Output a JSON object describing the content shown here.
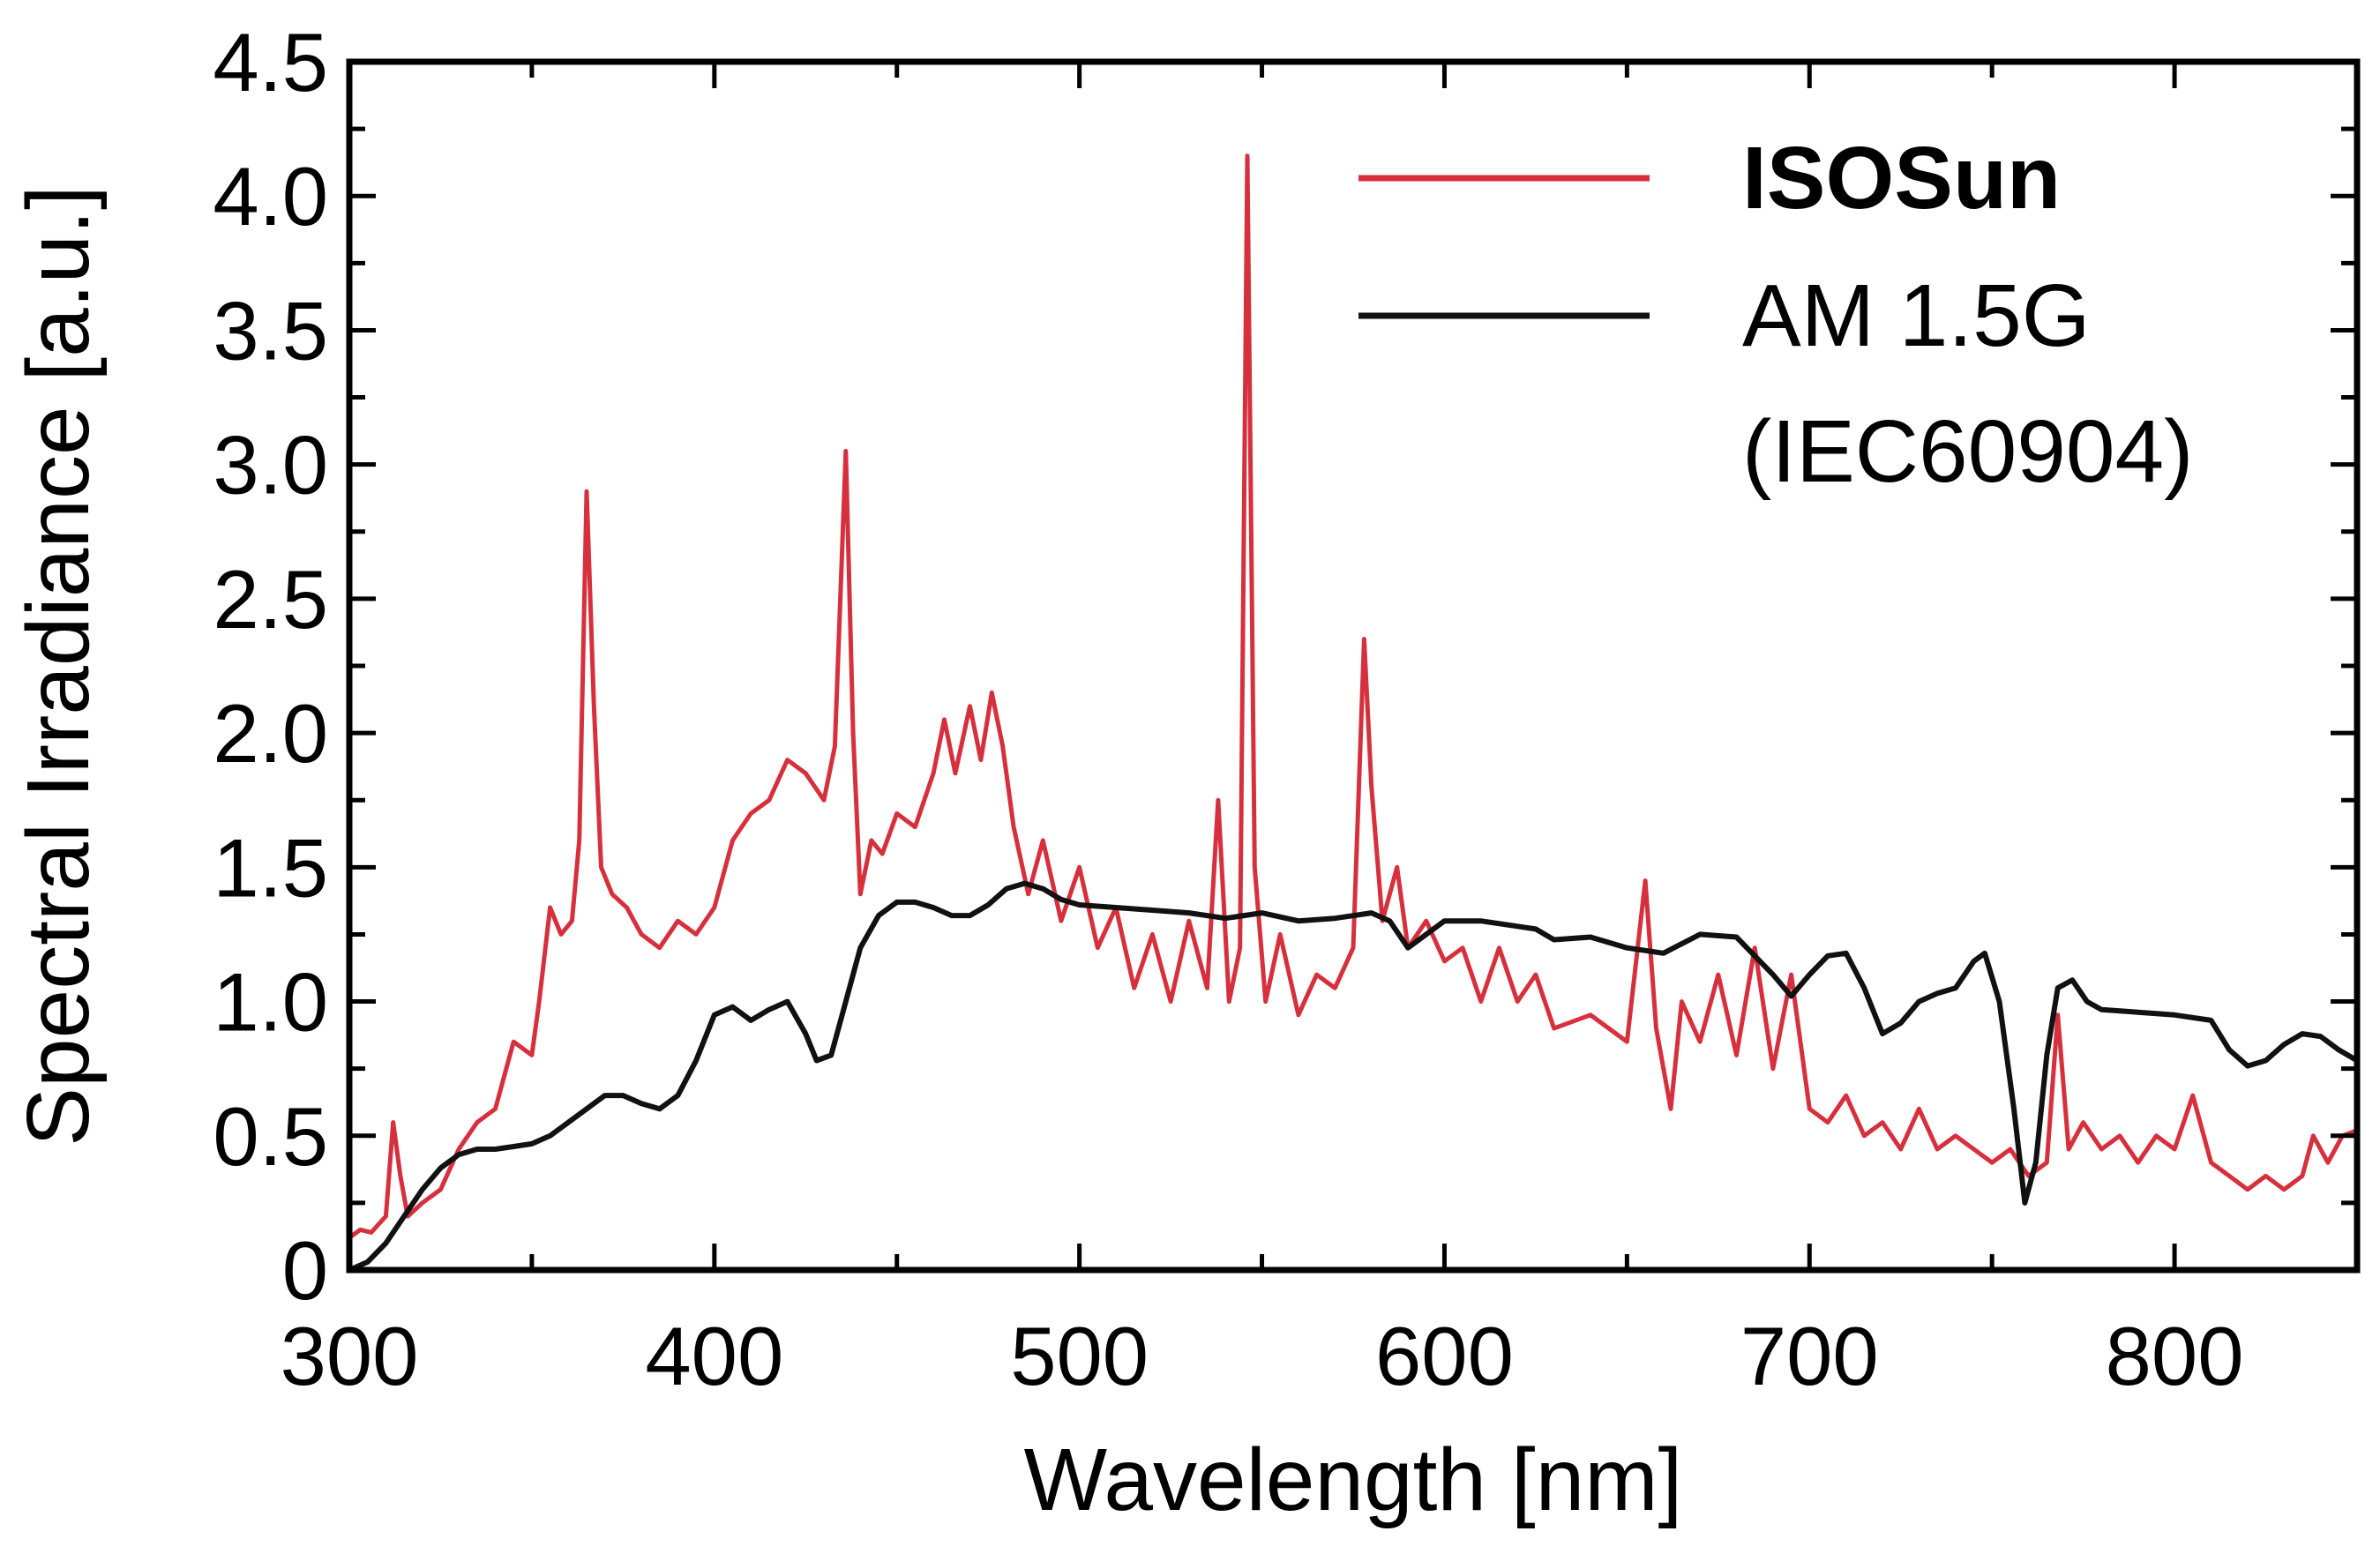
{
  "chart_data": {
    "type": "line",
    "title": "",
    "xlabel": "Wavelength [nm]",
    "ylabel": "Spectral Irradiance [a.u.]",
    "xlim": [
      300,
      850
    ],
    "ylim": [
      0,
      4.5
    ],
    "xticks": [
      300,
      400,
      500,
      600,
      700,
      800
    ],
    "xtick_labels": [
      "300",
      "400",
      "500",
      "600",
      "700",
      "800"
    ],
    "yticks": [
      0,
      0.5,
      1.0,
      1.5,
      2.0,
      2.5,
      3.0,
      3.5,
      4.0,
      4.5
    ],
    "ytick_labels": [
      "0",
      "0.5",
      "1.0",
      "1.5",
      "2.0",
      "2.5",
      "3.0",
      "3.5",
      "4.0",
      "4.5"
    ],
    "grid": false,
    "legend_position": "top-right",
    "legend": [
      {
        "label": "ISOSun",
        "bold": true,
        "series": 0
      },
      {
        "label": "AM 1.5G",
        "bold": false,
        "series": 1
      },
      {
        "label": "(IEC60904)",
        "bold": false,
        "series": null
      }
    ],
    "series": [
      {
        "name": "ISOSun",
        "color": "#d7303d",
        "points": [
          [
            300,
            0.12
          ],
          [
            303,
            0.15
          ],
          [
            306,
            0.14
          ],
          [
            310,
            0.2
          ],
          [
            312,
            0.55
          ],
          [
            314,
            0.35
          ],
          [
            316,
            0.2
          ],
          [
            320,
            0.25
          ],
          [
            325,
            0.3
          ],
          [
            330,
            0.45
          ],
          [
            335,
            0.55
          ],
          [
            340,
            0.6
          ],
          [
            345,
            0.85
          ],
          [
            350,
            0.8
          ],
          [
            352,
            1.0
          ],
          [
            355,
            1.35
          ],
          [
            358,
            1.25
          ],
          [
            361,
            1.3
          ],
          [
            363,
            1.6
          ],
          [
            365,
            2.9
          ],
          [
            367,
            2.1
          ],
          [
            369,
            1.5
          ],
          [
            372,
            1.4
          ],
          [
            376,
            1.35
          ],
          [
            380,
            1.25
          ],
          [
            385,
            1.2
          ],
          [
            390,
            1.3
          ],
          [
            395,
            1.25
          ],
          [
            400,
            1.35
          ],
          [
            405,
            1.6
          ],
          [
            410,
            1.7
          ],
          [
            415,
            1.75
          ],
          [
            420,
            1.9
          ],
          [
            425,
            1.85
          ],
          [
            430,
            1.75
          ],
          [
            433,
            1.95
          ],
          [
            436,
            3.05
          ],
          [
            438,
            2.0
          ],
          [
            440,
            1.4
          ],
          [
            443,
            1.6
          ],
          [
            446,
            1.55
          ],
          [
            450,
            1.7
          ],
          [
            455,
            1.65
          ],
          [
            460,
            1.85
          ],
          [
            463,
            2.05
          ],
          [
            466,
            1.85
          ],
          [
            470,
            2.1
          ],
          [
            473,
            1.9
          ],
          [
            476,
            2.15
          ],
          [
            479,
            1.95
          ],
          [
            482,
            1.65
          ],
          [
            486,
            1.4
          ],
          [
            490,
            1.6
          ],
          [
            495,
            1.3
          ],
          [
            500,
            1.5
          ],
          [
            505,
            1.2
          ],
          [
            510,
            1.35
          ],
          [
            515,
            1.05
          ],
          [
            520,
            1.25
          ],
          [
            525,
            1.0
          ],
          [
            530,
            1.3
          ],
          [
            535,
            1.05
          ],
          [
            538,
            1.75
          ],
          [
            541,
            1.0
          ],
          [
            544,
            1.2
          ],
          [
            546,
            4.15
          ],
          [
            548,
            1.5
          ],
          [
            551,
            1.0
          ],
          [
            555,
            1.25
          ],
          [
            560,
            0.95
          ],
          [
            565,
            1.1
          ],
          [
            570,
            1.05
          ],
          [
            575,
            1.2
          ],
          [
            578,
            2.35
          ],
          [
            580,
            1.8
          ],
          [
            583,
            1.3
          ],
          [
            587,
            1.5
          ],
          [
            590,
            1.2
          ],
          [
            595,
            1.3
          ],
          [
            600,
            1.15
          ],
          [
            605,
            1.2
          ],
          [
            610,
            1.0
          ],
          [
            615,
            1.2
          ],
          [
            620,
            1.0
          ],
          [
            625,
            1.1
          ],
          [
            630,
            0.9
          ],
          [
            640,
            0.95
          ],
          [
            650,
            0.85
          ],
          [
            655,
            1.45
          ],
          [
            658,
            0.9
          ],
          [
            662,
            0.6
          ],
          [
            665,
            1.0
          ],
          [
            670,
            0.85
          ],
          [
            675,
            1.1
          ],
          [
            680,
            0.8
          ],
          [
            685,
            1.2
          ],
          [
            690,
            0.75
          ],
          [
            695,
            1.1
          ],
          [
            700,
            0.6
          ],
          [
            705,
            0.55
          ],
          [
            710,
            0.65
          ],
          [
            715,
            0.5
          ],
          [
            720,
            0.55
          ],
          [
            725,
            0.45
          ],
          [
            730,
            0.6
          ],
          [
            735,
            0.45
          ],
          [
            740,
            0.5
          ],
          [
            745,
            0.45
          ],
          [
            750,
            0.4
          ],
          [
            755,
            0.45
          ],
          [
            760,
            0.35
          ],
          [
            765,
            0.4
          ],
          [
            768,
            0.95
          ],
          [
            771,
            0.45
          ],
          [
            775,
            0.55
          ],
          [
            780,
            0.45
          ],
          [
            785,
            0.5
          ],
          [
            790,
            0.4
          ],
          [
            795,
            0.5
          ],
          [
            800,
            0.45
          ],
          [
            805,
            0.65
          ],
          [
            810,
            0.4
          ],
          [
            815,
            0.35
          ],
          [
            820,
            0.3
          ],
          [
            825,
            0.35
          ],
          [
            830,
            0.3
          ],
          [
            835,
            0.35
          ],
          [
            838,
            0.5
          ],
          [
            842,
            0.4
          ],
          [
            846,
            0.5
          ],
          [
            850,
            0.52
          ]
        ]
      },
      {
        "name": "AM 1.5G",
        "color": "#111111",
        "points": [
          [
            300,
            0.0
          ],
          [
            305,
            0.03
          ],
          [
            310,
            0.1
          ],
          [
            315,
            0.2
          ],
          [
            320,
            0.3
          ],
          [
            325,
            0.38
          ],
          [
            330,
            0.43
          ],
          [
            335,
            0.45
          ],
          [
            340,
            0.45
          ],
          [
            345,
            0.46
          ],
          [
            350,
            0.47
          ],
          [
            355,
            0.5
          ],
          [
            360,
            0.55
          ],
          [
            365,
            0.6
          ],
          [
            370,
            0.65
          ],
          [
            375,
            0.65
          ],
          [
            380,
            0.62
          ],
          [
            385,
            0.6
          ],
          [
            390,
            0.65
          ],
          [
            395,
            0.78
          ],
          [
            400,
            0.95
          ],
          [
            405,
            0.98
          ],
          [
            410,
            0.93
          ],
          [
            415,
            0.97
          ],
          [
            420,
            1.0
          ],
          [
            425,
            0.88
          ],
          [
            428,
            0.78
          ],
          [
            432,
            0.8
          ],
          [
            436,
            1.0
          ],
          [
            440,
            1.2
          ],
          [
            445,
            1.32
          ],
          [
            450,
            1.37
          ],
          [
            455,
            1.37
          ],
          [
            460,
            1.35
          ],
          [
            465,
            1.32
          ],
          [
            470,
            1.32
          ],
          [
            475,
            1.36
          ],
          [
            480,
            1.42
          ],
          [
            485,
            1.44
          ],
          [
            490,
            1.42
          ],
          [
            495,
            1.38
          ],
          [
            500,
            1.36
          ],
          [
            510,
            1.35
          ],
          [
            520,
            1.34
          ],
          [
            530,
            1.33
          ],
          [
            540,
            1.31
          ],
          [
            550,
            1.33
          ],
          [
            560,
            1.3
          ],
          [
            570,
            1.31
          ],
          [
            580,
            1.33
          ],
          [
            585,
            1.3
          ],
          [
            590,
            1.2
          ],
          [
            595,
            1.25
          ],
          [
            600,
            1.3
          ],
          [
            610,
            1.3
          ],
          [
            620,
            1.28
          ],
          [
            625,
            1.27
          ],
          [
            630,
            1.23
          ],
          [
            640,
            1.24
          ],
          [
            650,
            1.2
          ],
          [
            660,
            1.18
          ],
          [
            670,
            1.25
          ],
          [
            680,
            1.24
          ],
          [
            690,
            1.1
          ],
          [
            695,
            1.02
          ],
          [
            700,
            1.1
          ],
          [
            705,
            1.17
          ],
          [
            710,
            1.18
          ],
          [
            715,
            1.05
          ],
          [
            720,
            0.88
          ],
          [
            725,
            0.92
          ],
          [
            730,
            1.0
          ],
          [
            735,
            1.03
          ],
          [
            740,
            1.05
          ],
          [
            745,
            1.15
          ],
          [
            748,
            1.18
          ],
          [
            752,
            1.0
          ],
          [
            756,
            0.6
          ],
          [
            759,
            0.25
          ],
          [
            762,
            0.4
          ],
          [
            765,
            0.8
          ],
          [
            768,
            1.05
          ],
          [
            772,
            1.08
          ],
          [
            776,
            1.0
          ],
          [
            780,
            0.97
          ],
          [
            790,
            0.96
          ],
          [
            800,
            0.95
          ],
          [
            810,
            0.93
          ],
          [
            815,
            0.82
          ],
          [
            820,
            0.76
          ],
          [
            825,
            0.78
          ],
          [
            830,
            0.84
          ],
          [
            835,
            0.88
          ],
          [
            840,
            0.87
          ],
          [
            845,
            0.82
          ],
          [
            850,
            0.78
          ]
        ]
      }
    ]
  }
}
